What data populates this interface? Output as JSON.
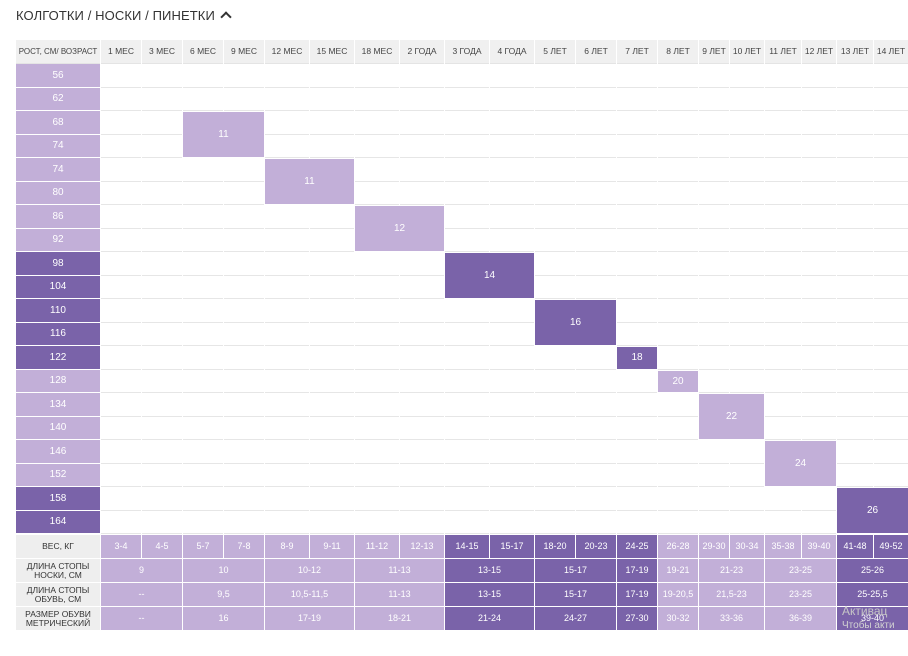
{
  "title": "КОЛГОТКИ / НОСКИ / ПИНЕТКИ",
  "header": [
    "РОСТ, СМ/ ВОЗРАСТ",
    "1 МЕС",
    "3 МЕС",
    "6 МЕС",
    "9 МЕС",
    "12 МЕС",
    "15 МЕС",
    "18 МЕС",
    "2 ГОДА",
    "3 ГОДА",
    "4 ГОДА",
    "5 ЛЕТ",
    "6 ЛЕТ",
    "7 ЛЕТ",
    "8 ЛЕТ",
    "9 ЛЕТ",
    "10 ЛЕТ",
    "11 ЛЕТ",
    "12 ЛЕТ",
    "13 ЛЕТ",
    "14 ЛЕТ"
  ],
  "heights": [
    {
      "value": "56",
      "tone": "light"
    },
    {
      "value": "62",
      "tone": "light"
    },
    {
      "value": "68",
      "tone": "light"
    },
    {
      "value": "74",
      "tone": "light"
    },
    {
      "value": "74",
      "tone": "light"
    },
    {
      "value": "80",
      "tone": "light"
    },
    {
      "value": "86",
      "tone": "light"
    },
    {
      "value": "92",
      "tone": "light"
    },
    {
      "value": "98",
      "tone": "dark"
    },
    {
      "value": "104",
      "tone": "dark"
    },
    {
      "value": "110",
      "tone": "dark"
    },
    {
      "value": "116",
      "tone": "dark"
    },
    {
      "value": "122",
      "tone": "dark"
    },
    {
      "value": "128",
      "tone": "light"
    },
    {
      "value": "134",
      "tone": "light"
    },
    {
      "value": "140",
      "tone": "light"
    },
    {
      "value": "146",
      "tone": "light"
    },
    {
      "value": "152",
      "tone": "light"
    },
    {
      "value": "158",
      "tone": "dark"
    },
    {
      "value": "164",
      "tone": "dark"
    }
  ],
  "size_blocks": [
    {
      "size": "11",
      "row_start": 3,
      "row_span": 2,
      "col_start": 3,
      "col_span": 2,
      "tone": "light"
    },
    {
      "size": "11",
      "row_start": 5,
      "row_span": 2,
      "col_start": 5,
      "col_span": 2,
      "tone": "light"
    },
    {
      "size": "12",
      "row_start": 7,
      "row_span": 2,
      "col_start": 7,
      "col_span": 2,
      "tone": "light"
    },
    {
      "size": "14",
      "row_start": 9,
      "row_span": 2,
      "col_start": 9,
      "col_span": 2,
      "tone": "dark"
    },
    {
      "size": "16",
      "row_start": 11,
      "row_span": 2,
      "col_start": 11,
      "col_span": 2,
      "tone": "dark"
    },
    {
      "size": "18",
      "row_start": 13,
      "row_span": 1,
      "col_start": 13,
      "col_span": 1,
      "tone": "dark"
    },
    {
      "size": "20",
      "row_start": 14,
      "row_span": 1,
      "col_start": 14,
      "col_span": 1,
      "tone": "light"
    },
    {
      "size": "22",
      "row_start": 15,
      "row_span": 2,
      "col_start": 15,
      "col_span": 2,
      "tone": "light"
    },
    {
      "size": "24",
      "row_start": 17,
      "row_span": 2,
      "col_start": 17,
      "col_span": 2,
      "tone": "light"
    },
    {
      "size": "26",
      "row_start": 19,
      "row_span": 2,
      "col_start": 19,
      "col_span": 2,
      "tone": "dark"
    }
  ],
  "footer": [
    {
      "label": "ВЕС, КГ",
      "cells": [
        {
          "text": "3-4",
          "span": 1,
          "tone": "light"
        },
        {
          "text": "4-5",
          "span": 1,
          "tone": "light"
        },
        {
          "text": "5-7",
          "span": 1,
          "tone": "light"
        },
        {
          "text": "7-8",
          "span": 1,
          "tone": "light"
        },
        {
          "text": "8-9",
          "span": 1,
          "tone": "light"
        },
        {
          "text": "9-11",
          "span": 1,
          "tone": "light"
        },
        {
          "text": "11-12",
          "span": 1,
          "tone": "light"
        },
        {
          "text": "12-13",
          "span": 1,
          "tone": "light"
        },
        {
          "text": "14-15",
          "span": 1,
          "tone": "dark"
        },
        {
          "text": "15-17",
          "span": 1,
          "tone": "dark"
        },
        {
          "text": "18-20",
          "span": 1,
          "tone": "dark"
        },
        {
          "text": "20-23",
          "span": 1,
          "tone": "dark"
        },
        {
          "text": "24-25",
          "span": 1,
          "tone": "dark"
        },
        {
          "text": "26-28",
          "span": 1,
          "tone": "light"
        },
        {
          "text": "29-30",
          "span": 1,
          "tone": "light"
        },
        {
          "text": "30-34",
          "span": 1,
          "tone": "light"
        },
        {
          "text": "35-38",
          "span": 1,
          "tone": "light"
        },
        {
          "text": "39-40",
          "span": 1,
          "tone": "light"
        },
        {
          "text": "41-48",
          "span": 1,
          "tone": "dark"
        },
        {
          "text": "49-52",
          "span": 1,
          "tone": "dark"
        }
      ]
    },
    {
      "label": "ДЛИНА СТОПЫ НОСКИ, СМ",
      "cells": [
        {
          "text": "9",
          "span": 2,
          "tone": "light"
        },
        {
          "text": "10",
          "span": 2,
          "tone": "light"
        },
        {
          "text": "10-12",
          "span": 2,
          "tone": "light"
        },
        {
          "text": "11-13",
          "span": 2,
          "tone": "light"
        },
        {
          "text": "13-15",
          "span": 2,
          "tone": "dark"
        },
        {
          "text": "15-17",
          "span": 2,
          "tone": "dark"
        },
        {
          "text": "17-19",
          "span": 1,
          "tone": "dark"
        },
        {
          "text": "19-21",
          "span": 1,
          "tone": "light"
        },
        {
          "text": "21-23",
          "span": 2,
          "tone": "light"
        },
        {
          "text": "23-25",
          "span": 2,
          "tone": "light"
        },
        {
          "text": "25-26",
          "span": 2,
          "tone": "dark"
        }
      ]
    },
    {
      "label": "ДЛИНА СТОПЫ ОБУВЬ, СМ",
      "cells": [
        {
          "text": "--",
          "span": 2,
          "tone": "light"
        },
        {
          "text": "9,5",
          "span": 2,
          "tone": "light"
        },
        {
          "text": "10,5-11,5",
          "span": 2,
          "tone": "light"
        },
        {
          "text": "11-13",
          "span": 2,
          "tone": "light"
        },
        {
          "text": "13-15",
          "span": 2,
          "tone": "dark"
        },
        {
          "text": "15-17",
          "span": 2,
          "tone": "dark"
        },
        {
          "text": "17-19",
          "span": 1,
          "tone": "dark"
        },
        {
          "text": "19-20,5",
          "span": 1,
          "tone": "light"
        },
        {
          "text": "21,5-23",
          "span": 2,
          "tone": "light"
        },
        {
          "text": "23-25",
          "span": 2,
          "tone": "light"
        },
        {
          "text": "25-25,5",
          "span": 2,
          "tone": "dark"
        }
      ]
    },
    {
      "label": "РАЗМЕР ОБУВИ МЕТРИЧЕСКИЙ",
      "cells": [
        {
          "text": "--",
          "span": 2,
          "tone": "light"
        },
        {
          "text": "16",
          "span": 2,
          "tone": "light"
        },
        {
          "text": "17-19",
          "span": 2,
          "tone": "light"
        },
        {
          "text": "18-21",
          "span": 2,
          "tone": "light"
        },
        {
          "text": "21-24",
          "span": 2,
          "tone": "dark"
        },
        {
          "text": "24-27",
          "span": 2,
          "tone": "dark"
        },
        {
          "text": "27-30",
          "span": 1,
          "tone": "dark"
        },
        {
          "text": "30-32",
          "span": 1,
          "tone": "light"
        },
        {
          "text": "33-36",
          "span": 2,
          "tone": "light"
        },
        {
          "text": "36-39",
          "span": 2,
          "tone": "light"
        },
        {
          "text": "39-40",
          "span": 2,
          "tone": "dark"
        }
      ]
    }
  ],
  "watermark": {
    "line1": "Активац",
    "line2": "Чтобы акти"
  },
  "colors": {
    "light": "#c2afd8",
    "dark": "#7a63a9",
    "header_bg": "#f0f0f0",
    "label_bg": "#eeeeee"
  },
  "icons": {
    "toggle": "chevron-up-icon"
  }
}
